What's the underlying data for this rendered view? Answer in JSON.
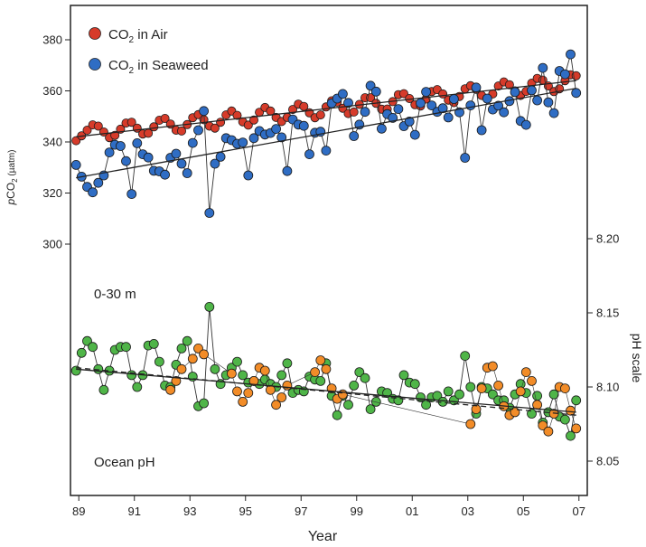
{
  "chart_data": {
    "type": "scatter",
    "xlabel": "Year",
    "ylabel_left": "pCO2 (µatm)",
    "ylabel_left_parts": [
      "p",
      "CO",
      "2",
      " (µatm)"
    ],
    "ylabel_right": "pH scale",
    "xlim": [
      1988.7,
      2007.3
    ],
    "x_ticks": [
      1989,
      1991,
      1993,
      1995,
      1997,
      1999,
      2001,
      2003,
      2005,
      2007
    ],
    "x_tick_labels": [
      "89",
      "91",
      "93",
      "95",
      "97",
      "99",
      "01",
      "03",
      "05",
      "07"
    ],
    "co2_axis": {
      "min": 300,
      "max": 380,
      "ticks": [
        300,
        320,
        340,
        360,
        380
      ]
    },
    "ph_axis": {
      "min": 8.05,
      "max": 8.2,
      "ticks": [
        8.05,
        8.1,
        8.15,
        8.2
      ],
      "tick_labels": [
        "8.05",
        "8.10",
        "8.15",
        "8.20"
      ]
    },
    "annotations": {
      "depth": "0-30 m",
      "ocean_ph": "Ocean pH"
    },
    "legend": [
      {
        "prefix": "CO",
        "sub": "2",
        "suffix": " in Air",
        "label": "CO2 in Air",
        "color": "#d63b2a"
      },
      {
        "prefix": "CO",
        "sub": "2",
        "suffix": " in Seaweed",
        "label": "CO2 in Seaweed",
        "color": "#2f6dc4"
      }
    ],
    "colors": {
      "air": "#d63b2a",
      "seaweed": "#2f6dc4",
      "ph_measured": "#4fb548",
      "ph_calculated": "#f28c28",
      "trend": "#222222"
    },
    "series": [
      {
        "name": "CO2 in Air",
        "x": [
          1988.9,
          1989.1,
          1989.3,
          1989.5,
          1989.7,
          1989.9,
          1990.1,
          1990.3,
          1990.5,
          1990.7,
          1990.9,
          1991.1,
          1991.3,
          1991.5,
          1991.7,
          1991.9,
          1992.1,
          1992.3,
          1992.5,
          1992.7,
          1992.9,
          1993.1,
          1993.3,
          1993.5,
          1993.7,
          1993.9,
          1994.1,
          1994.3,
          1994.5,
          1994.7,
          1994.9,
          1995.1,
          1995.3,
          1995.5,
          1995.7,
          1995.9,
          1996.1,
          1996.3,
          1996.5,
          1996.7,
          1996.9,
          1997.1,
          1997.3,
          1997.5,
          1997.7,
          1997.9,
          1998.1,
          1998.3,
          1998.5,
          1998.7,
          1998.9,
          1999.1,
          1999.3,
          1999.5,
          1999.7,
          1999.9,
          2000.1,
          2000.3,
          2000.5,
          2000.7,
          2000.9,
          2001.1,
          2001.3,
          2001.5,
          2001.7,
          2001.9,
          2002.1,
          2002.3,
          2002.5,
          2002.7,
          2002.9,
          2003.1,
          2003.3,
          2003.5,
          2003.7,
          2003.9,
          2004.1,
          2004.3,
          2004.5,
          2004.7,
          2004.9,
          2005.1,
          2005.3,
          2005.5,
          2005.7,
          2005.9,
          2006.1,
          2006.3,
          2006.5,
          2006.7,
          2006.9
        ],
        "y": [
          340.5,
          342.4,
          344.6,
          346.7,
          346.2,
          343.9,
          341.7,
          342.6,
          345.0,
          347.4,
          347.7,
          345.4,
          343.1,
          343.4,
          345.9,
          348.5,
          349.2,
          347.0,
          344.6,
          344.3,
          346.8,
          349.5,
          350.7,
          348.7,
          346.2,
          345.4,
          347.7,
          350.6,
          352.1,
          350.4,
          347.9,
          346.6,
          348.6,
          351.6,
          353.5,
          352.1,
          349.6,
          348.0,
          349.6,
          352.7,
          354.8,
          353.9,
          351.4,
          349.5,
          350.6,
          353.7,
          356.1,
          355.6,
          353.2,
          351.1,
          351.7,
          354.7,
          357.3,
          357.3,
          355.1,
          352.8,
          352.9,
          355.8,
          358.5,
          358.9,
          357.0,
          354.6,
          354.1,
          356.8,
          359.7,
          360.5,
          358.8,
          356.4,
          355.4,
          357.8,
          360.8,
          362.0,
          360.6,
          358.2,
          356.8,
          358.8,
          361.9,
          363.5,
          362.4,
          360.0,
          358.2,
          359.8,
          363.0,
          364.9,
          364.2,
          361.9,
          359.7,
          360.8,
          364.0,
          366.3,
          365.9
        ],
        "color": "#d63b2a"
      },
      {
        "name": "CO2 in Seaweed",
        "x": [
          1988.9,
          1989.1,
          1989.3,
          1989.5,
          1989.7,
          1989.9,
          1990.1,
          1990.3,
          1990.5,
          1990.7,
          1990.9,
          1991.1,
          1991.3,
          1991.5,
          1991.7,
          1991.9,
          1992.1,
          1992.3,
          1992.5,
          1992.7,
          1992.9,
          1993.1,
          1993.3,
          1993.5,
          1993.7,
          1993.9,
          1994.1,
          1994.3,
          1994.5,
          1994.7,
          1994.9,
          1995.1,
          1995.3,
          1995.5,
          1995.7,
          1995.9,
          1996.1,
          1996.3,
          1996.5,
          1996.7,
          1996.9,
          1997.1,
          1997.3,
          1997.5,
          1997.7,
          1997.9,
          1998.1,
          1998.3,
          1998.5,
          1998.7,
          1998.9,
          1999.1,
          1999.3,
          1999.5,
          1999.7,
          1999.9,
          2000.1,
          2000.3,
          2000.5,
          2000.7,
          2000.9,
          2001.1,
          2001.3,
          2001.5,
          2001.7,
          2001.9,
          2002.1,
          2002.3,
          2002.5,
          2002.7,
          2002.9,
          2003.1,
          2003.3,
          2003.5,
          2003.7,
          2003.9,
          2004.1,
          2004.3,
          2004.5,
          2004.7,
          2004.9,
          2005.1,
          2005.3,
          2005.5,
          2005.7,
          2005.9,
          2006.1,
          2006.3,
          2006.5,
          2006.7,
          2006.9
        ],
        "y": [
          331.0,
          326.4,
          322.4,
          320.3,
          324.0,
          326.9,
          335.9,
          338.9,
          338.4,
          332.5,
          319.6,
          339.5,
          335.2,
          333.9,
          328.7,
          328.5,
          327.2,
          333.8,
          335.4,
          331.5,
          327.8,
          339.6,
          344.6,
          352.1,
          312.2,
          331.5,
          334.2,
          341.5,
          340.7,
          339.3,
          339.8,
          326.9,
          341.5,
          344.3,
          342.9,
          343.5,
          345.1,
          341.8,
          328.6,
          348.8,
          346.8,
          346.3,
          335.2,
          343.6,
          344.0,
          336.6,
          355.1,
          357.0,
          358.8,
          355.3,
          342.3,
          346.8,
          351.8,
          362.0,
          359.7,
          345.2,
          350.9,
          349.4,
          352.9,
          346.2,
          348.0,
          342.8,
          355.2,
          359.6,
          354.3,
          351.8,
          353.2,
          349.6,
          356.8,
          351.6,
          333.8,
          354.3,
          361.3,
          344.6,
          357.0,
          352.7,
          354.2,
          351.6,
          356.0,
          359.5,
          348.2,
          346.7,
          360.2,
          356.3,
          369.0,
          355.5,
          351.3,
          367.8,
          366.5,
          374.3,
          359.2
        ],
        "color": "#2f6dc4"
      },
      {
        "name": "Ocean pH measured",
        "x": [
          1988.9,
          1989.1,
          1989.3,
          1989.5,
          1989.7,
          1989.9,
          1990.1,
          1990.3,
          1990.5,
          1990.7,
          1990.9,
          1991.1,
          1991.3,
          1991.5,
          1991.7,
          1991.9,
          1992.1,
          1992.3,
          1992.5,
          1992.7,
          1992.9,
          1993.1,
          1993.3,
          1993.5,
          1993.7,
          1993.9,
          1994.1,
          1994.3,
          1994.5,
          1994.7,
          1994.9,
          1995.1,
          1995.3,
          1995.5,
          1995.7,
          1995.9,
          1996.1,
          1996.3,
          1996.5,
          1996.7,
          1996.9,
          1997.1,
          1997.3,
          1997.5,
          1997.7,
          1997.9,
          1998.1,
          1998.3,
          1998.5,
          1998.7,
          1998.9,
          1999.1,
          1999.3,
          1999.5,
          1999.7,
          1999.9,
          2000.1,
          2000.3,
          2000.5,
          2000.7,
          2000.9,
          2001.1,
          2001.3,
          2001.5,
          2001.7,
          2001.9,
          2002.1,
          2002.3,
          2002.5,
          2002.7,
          2002.9,
          2003.1,
          2003.3,
          2003.5,
          2003.7,
          2003.9,
          2004.1,
          2004.3,
          2004.5,
          2004.7,
          2004.9,
          2005.1,
          2005.3,
          2005.5,
          2005.7,
          2005.9,
          2006.1,
          2006.3,
          2006.5,
          2006.7,
          2006.9
        ],
        "y": [
          8.111,
          8.123,
          8.131,
          8.127,
          8.112,
          8.098,
          8.111,
          8.125,
          8.127,
          8.127,
          8.108,
          8.1,
          8.108,
          8.128,
          8.129,
          8.117,
          8.101,
          8.1,
          8.115,
          8.126,
          8.131,
          8.107,
          8.087,
          8.089,
          8.154,
          8.112,
          8.102,
          8.108,
          8.113,
          8.117,
          8.108,
          8.103,
          8.104,
          8.102,
          8.105,
          8.102,
          8.1,
          8.108,
          8.116,
          8.096,
          8.098,
          8.097,
          8.107,
          8.105,
          8.104,
          8.116,
          8.094,
          8.081,
          8.094,
          8.088,
          8.101,
          8.11,
          8.106,
          8.085,
          8.09,
          8.097,
          8.096,
          8.092,
          8.091,
          8.108,
          8.103,
          8.102,
          8.093,
          8.088,
          8.093,
          8.094,
          8.09,
          8.097,
          8.091,
          8.095,
          8.121,
          8.1,
          8.082,
          8.1,
          8.099,
          8.095,
          8.091,
          8.091,
          8.086,
          8.095,
          8.102,
          8.096,
          8.082,
          8.094,
          8.076,
          8.083,
          8.095,
          8.08,
          8.078,
          8.067,
          8.091
        ],
        "color": "#4fb548"
      },
      {
        "name": "Ocean pH calculated",
        "x": [
          1992.3,
          1992.5,
          1992.7,
          1993.1,
          1993.3,
          1993.5,
          1994.5,
          1994.7,
          1994.9,
          1995.1,
          1995.3,
          1995.5,
          1995.7,
          1995.9,
          1996.1,
          1996.3,
          1996.5,
          1997.5,
          1997.7,
          1997.9,
          1998.1,
          1998.3,
          1998.5,
          2003.1,
          2003.3,
          2003.5,
          2003.7,
          2003.9,
          2004.1,
          2004.3,
          2004.5,
          2004.7,
          2004.9,
          2005.1,
          2005.3,
          2005.5,
          2005.7,
          2005.9,
          2006.1,
          2006.3,
          2006.5,
          2006.7,
          2006.9
        ],
        "y": [
          8.098,
          8.104,
          8.112,
          8.119,
          8.126,
          8.122,
          8.109,
          8.097,
          8.09,
          8.096,
          8.104,
          8.113,
          8.111,
          8.098,
          8.088,
          8.093,
          8.101,
          8.11,
          8.118,
          8.112,
          8.099,
          8.092,
          8.095,
          8.075,
          8.085,
          8.099,
          8.113,
          8.114,
          8.101,
          8.087,
          8.081,
          8.083,
          8.097,
          8.11,
          8.104,
          8.088,
          8.074,
          8.07,
          8.082,
          8.1,
          8.099,
          8.084,
          8.072
        ],
        "color": "#f28c28"
      }
    ],
    "trendlines": [
      {
        "name": "CO2 in Air trend",
        "axis": "co2",
        "x": [
          1988.9,
          2006.9
        ],
        "y": [
          342.0,
          364.0
        ]
      },
      {
        "name": "CO2 in Seaweed trend",
        "axis": "co2",
        "x": [
          1988.9,
          2006.9
        ],
        "y": [
          326.0,
          361.0
        ]
      },
      {
        "name": "pH trend",
        "axis": "ph",
        "x": [
          1988.9,
          2006.9
        ],
        "y": [
          8.112,
          8.083
        ]
      },
      {
        "name": "pH trend calculated",
        "axis": "ph",
        "x": [
          1988.9,
          2006.9
        ],
        "y": [
          8.113,
          8.081
        ],
        "dashed": true
      }
    ]
  }
}
